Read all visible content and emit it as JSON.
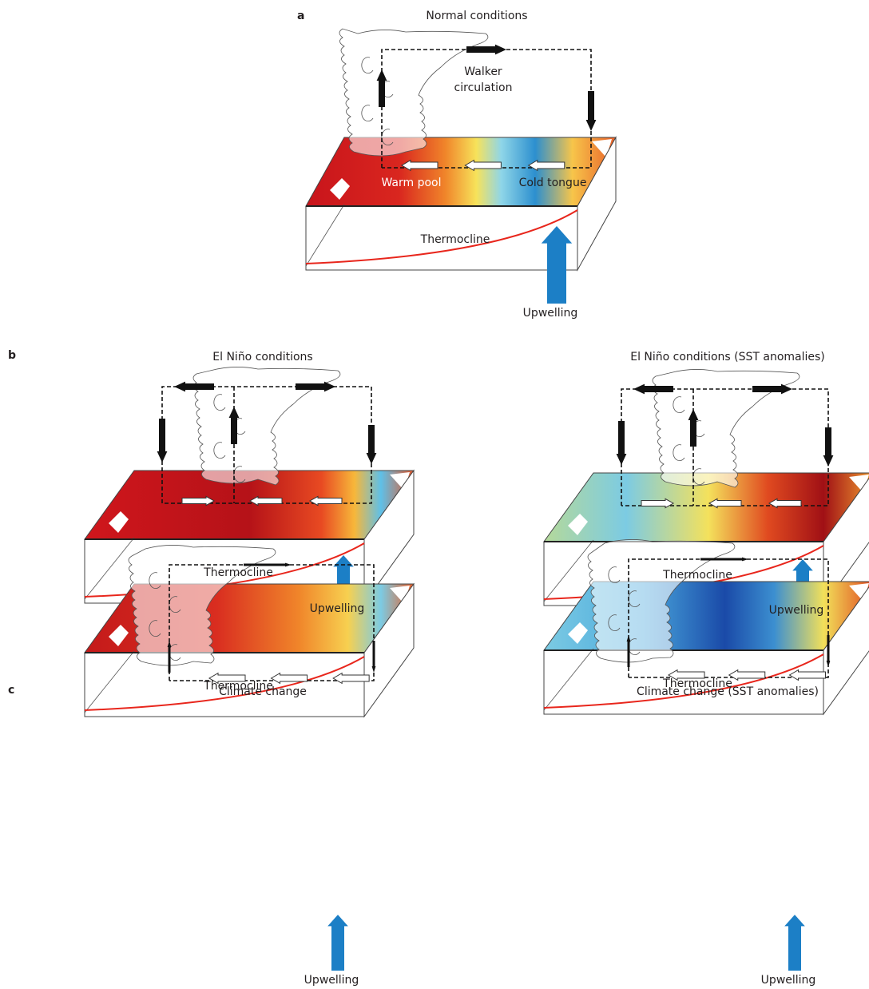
{
  "panels": [
    {
      "label": "a",
      "title": "Normal conditions",
      "walker": "Walker circulation",
      "warm_pool": "Warm pool",
      "cold_tongue": "Cold tongue",
      "thermocline": "Thermocline",
      "upwelling": "Upwelling"
    },
    {
      "label": "b",
      "title": "El Niño conditions",
      "thermocline": "Thermocline",
      "upwelling": "Upwelling"
    },
    {
      "title": "El Niño conditions (SST anomalies)",
      "thermocline": "Thermocline",
      "upwelling": "Upwelling"
    },
    {
      "label": "c",
      "title": "Climate change",
      "thermocline": "Thermocline",
      "upwelling": "Upwelling"
    },
    {
      "title": "Climate change (SST anomalies)",
      "thermocline": "Thermocline",
      "upwelling": "Upwelling"
    }
  ]
}
